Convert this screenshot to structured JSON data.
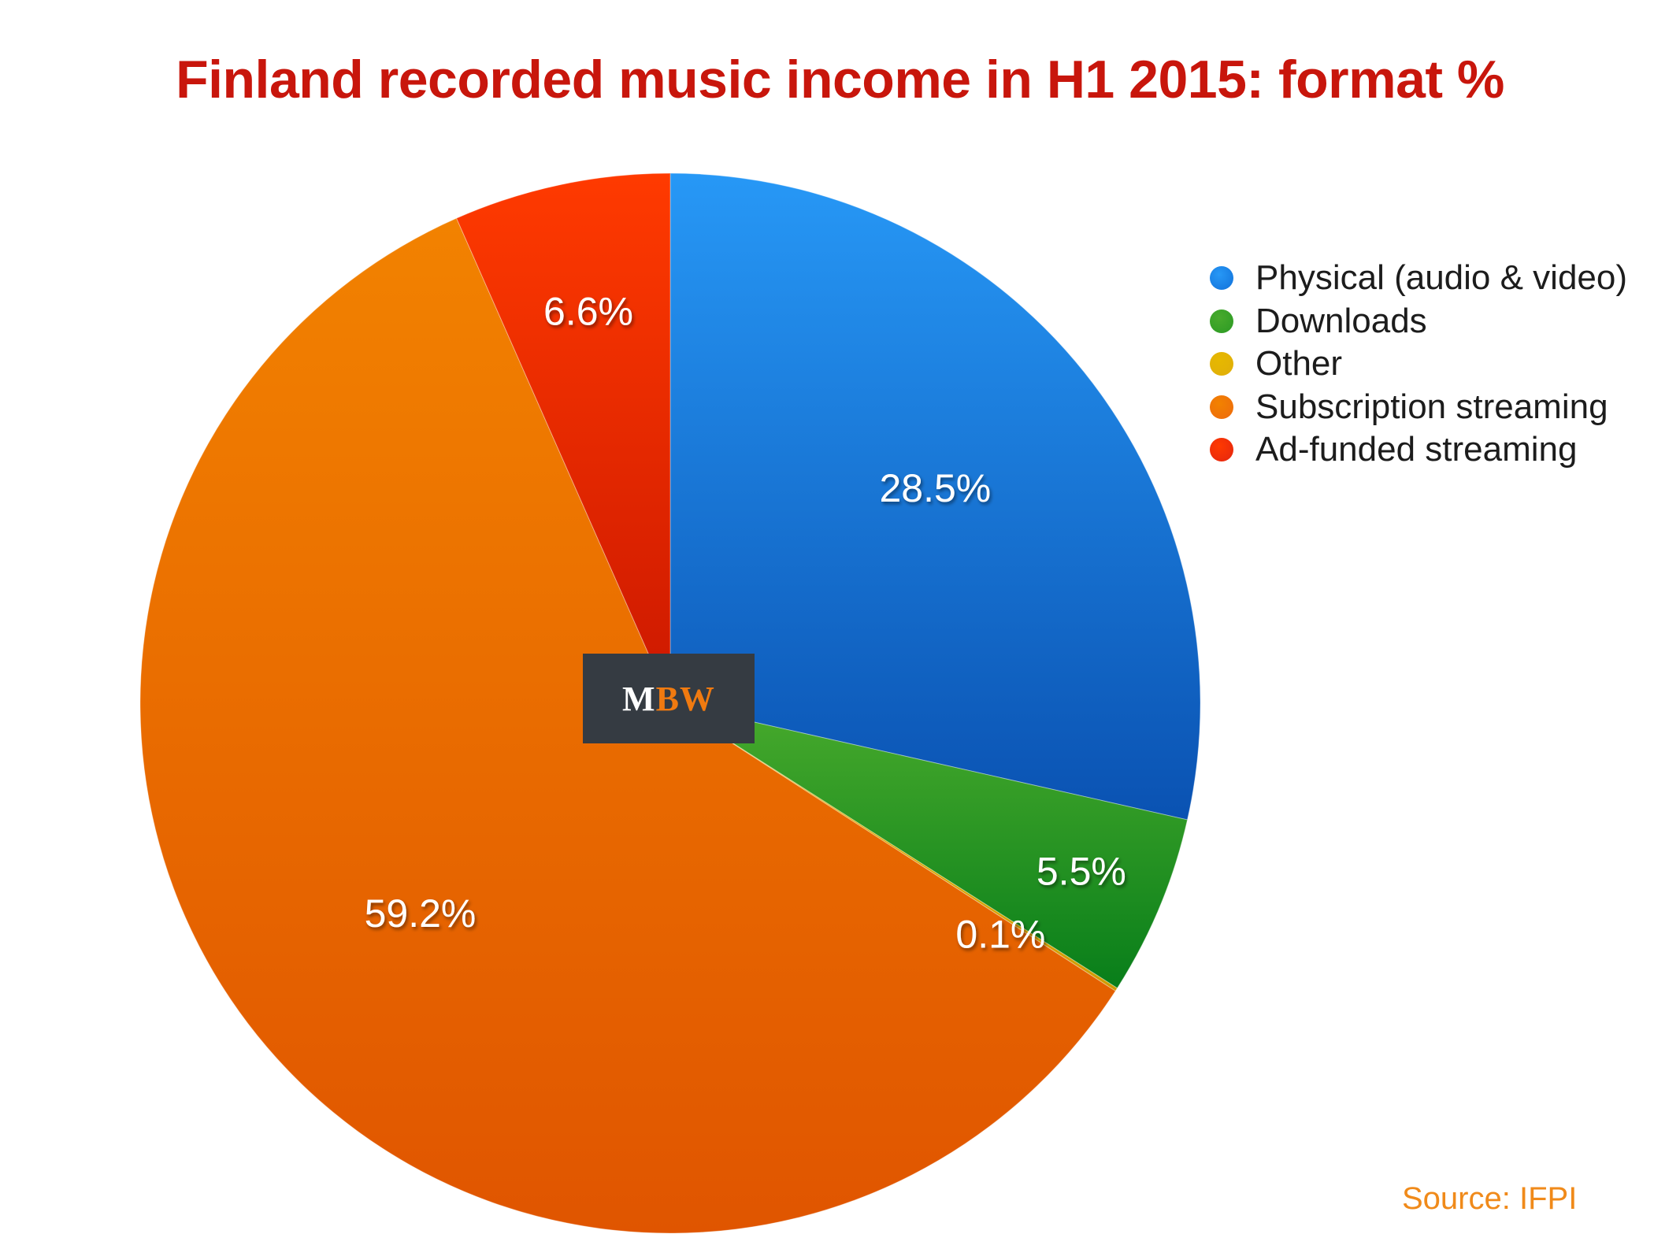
{
  "chart_data": {
    "type": "pie",
    "title": "Finland recorded music income in H1 2015: format %",
    "unit": "%",
    "slices": [
      {
        "name": "Physical (audio & video)",
        "value": 28.5,
        "label": "28.5%",
        "color_top": "#2798f6",
        "color_bottom": "#0a52b2",
        "legend_color": "#1171da"
      },
      {
        "name": "Downloads",
        "value": 5.5,
        "label": "5.5%",
        "color_top": "#48aa2c",
        "color_bottom": "#087e1a",
        "legend_color": "#2b9a24"
      },
      {
        "name": "Other",
        "value": 0.1,
        "label": "0.1%",
        "color_top": "#e6b800",
        "color_bottom": "#d09a00",
        "legend_color": "#e0ae0a"
      },
      {
        "name": "Subscription streaming",
        "value": 59.2,
        "label": "59.2%",
        "color_top": "#f28200",
        "color_bottom": "#e05500",
        "legend_color": "#ee6a0e"
      },
      {
        "name": "Ad-funded streaming",
        "value": 6.6,
        "label": "6.6%",
        "color_top": "#ff3a00",
        "color_bottom": "#cc1800",
        "legend_color": "#e42510"
      }
    ],
    "legend_position": "top-right",
    "start_angle_deg": 0,
    "direction": "clockwise"
  },
  "logo": {
    "part1": "M",
    "part2": "BW"
  },
  "source": "Source: IFPI"
}
